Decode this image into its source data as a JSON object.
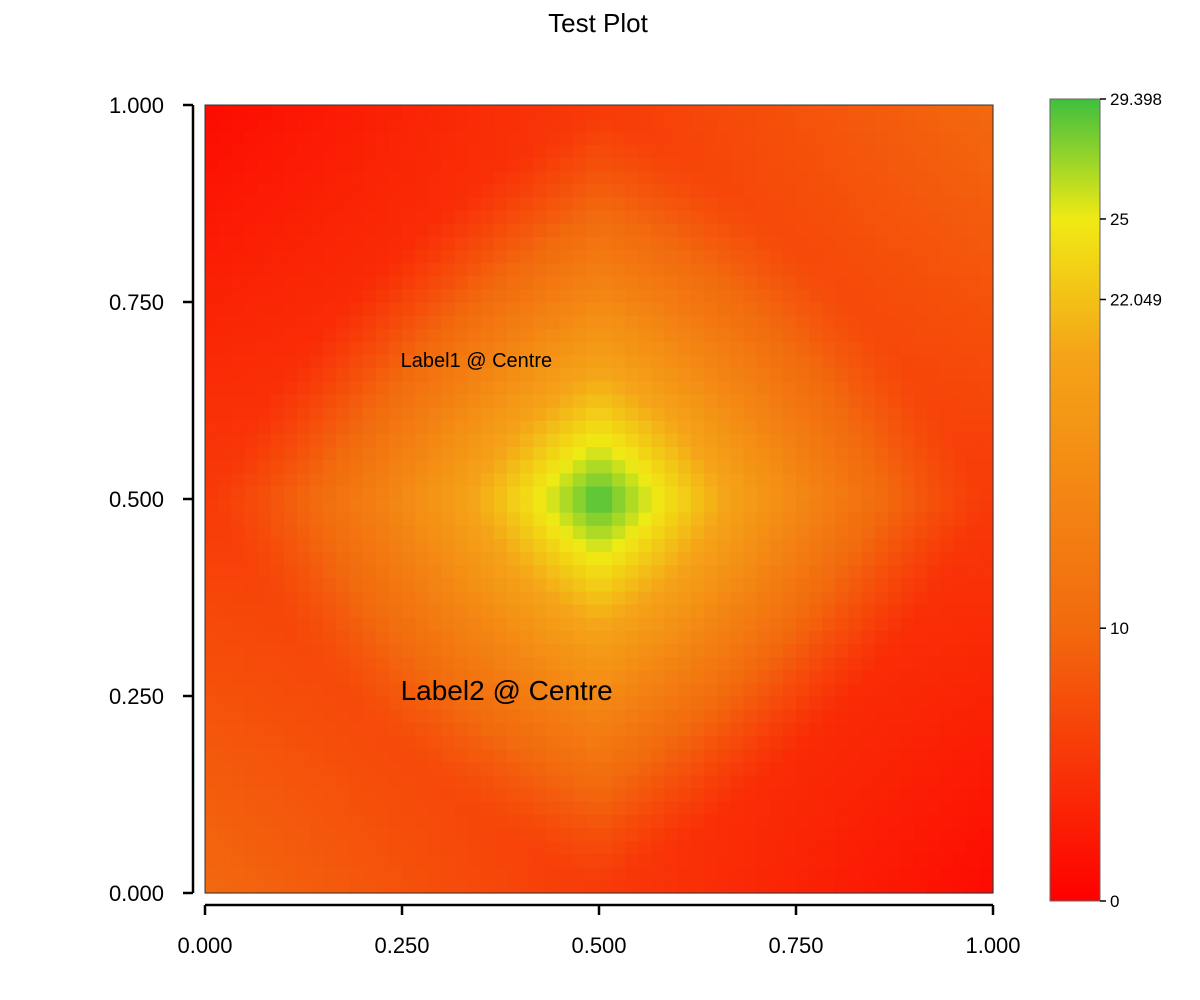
{
  "chart_data": {
    "type": "heatmap",
    "title": "Test Plot",
    "xlabel": "",
    "ylabel": "",
    "xlim": [
      0,
      1
    ],
    "ylim": [
      0,
      1
    ],
    "x_ticks": [
      "0.000",
      "0.250",
      "0.500",
      "0.750",
      "1.000"
    ],
    "y_ticks": [
      "0.000",
      "0.250",
      "0.500",
      "0.750",
      "1.000"
    ],
    "x_tick_values": [
      0,
      0.25,
      0.5,
      0.75,
      1
    ],
    "y_tick_values": [
      0,
      0.25,
      0.5,
      0.75,
      1
    ],
    "grid": false,
    "colorbar": {
      "min": 0,
      "max": 29.398,
      "ticks": [
        {
          "value": 0,
          "label": "0"
        },
        {
          "value": 10,
          "label": "10"
        },
        {
          "value": 22.049,
          "label": "22.049"
        },
        {
          "value": 25,
          "label": "25"
        },
        {
          "value": 29.398,
          "label": "29.398"
        }
      ],
      "colors": [
        {
          "value": 0,
          "color": "#ff0000"
        },
        {
          "value": 10,
          "color": "#f26a0e"
        },
        {
          "value": 20,
          "color": "#f5a418"
        },
        {
          "value": 25,
          "color": "#f0ea14"
        },
        {
          "value": 29.398,
          "color": "#3fbf3f"
        }
      ]
    },
    "field": {
      "peak": {
        "x": 0.5,
        "y": 0.5,
        "value": 29.398
      },
      "corner_values": {
        "bottom_left": 10,
        "bottom_right": 1,
        "top_left": 1,
        "top_right": 10
      }
    },
    "annotations": [
      {
        "text": "Label1 @ Centre",
        "x": 0.2,
        "y": 0.66,
        "size": "small"
      },
      {
        "text": "Label2 @ Centre",
        "x": 0.2,
        "y": 0.25,
        "size": "large"
      }
    ]
  }
}
